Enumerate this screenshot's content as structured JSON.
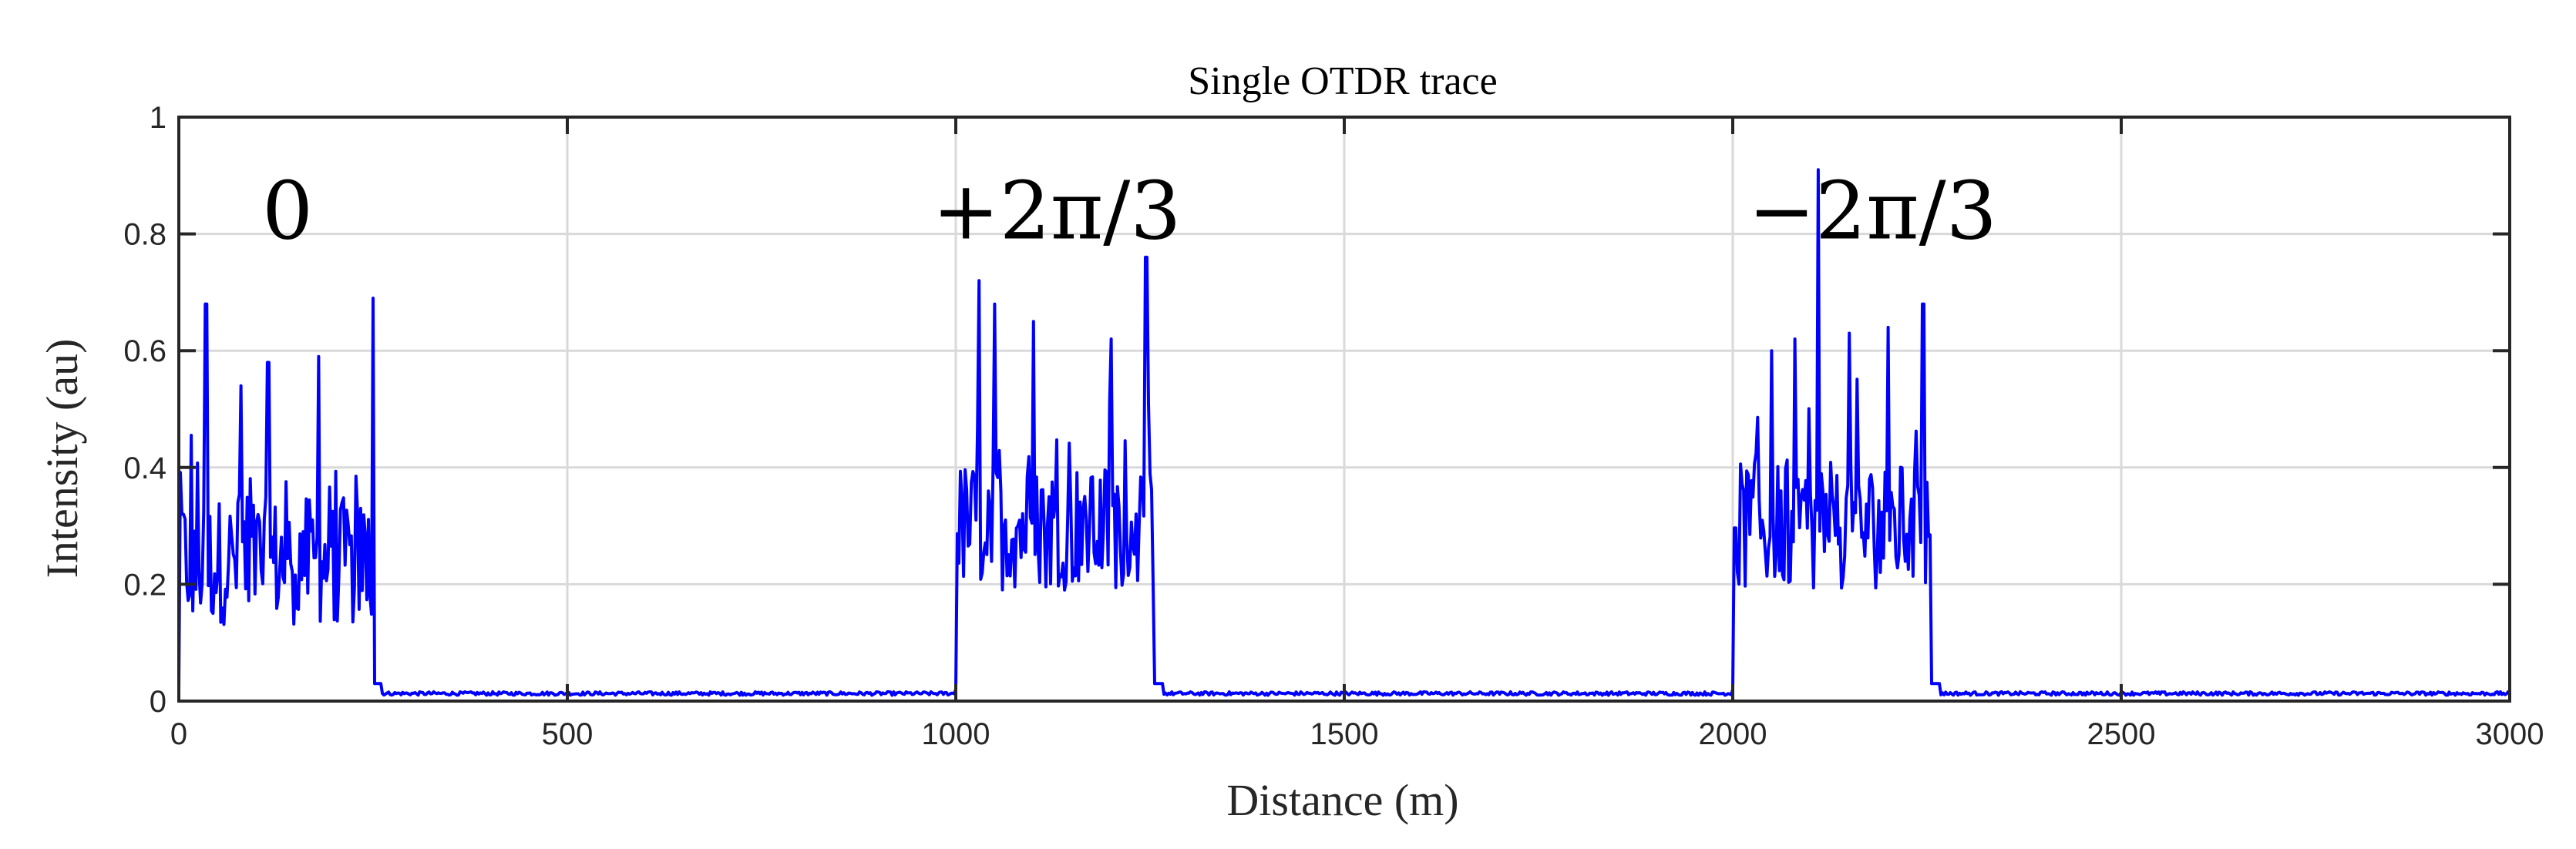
{
  "chart_data": {
    "type": "line",
    "title": "Single OTDR trace",
    "xlabel": "Distance (m)",
    "ylabel": "Intensity (au)",
    "xlim": [
      0,
      3000
    ],
    "ylim": [
      0,
      1
    ],
    "xticks": [
      0,
      500,
      1000,
      1500,
      2000,
      2500,
      3000
    ],
    "yticks": [
      0,
      0.2,
      0.4,
      0.6,
      0.8,
      1
    ],
    "xtick_labels": [
      "0",
      "500",
      "1000",
      "1500",
      "2000",
      "2500",
      "3000"
    ],
    "ytick_labels": [
      "0",
      "0.2",
      "0.4",
      "0.6",
      "0.8",
      "1"
    ],
    "grid": true,
    "line_color": "#0000ff",
    "annotations": [
      {
        "text": "0",
        "x": 140,
        "y": 0.84
      },
      {
        "text": "+2π/3",
        "x": 1130,
        "y": 0.84
      },
      {
        "text": "−2π/3",
        "x": 2180,
        "y": 0.84
      }
    ],
    "series": [
      {
        "name": "Single OTDR trace",
        "pulses": [
          {
            "phase": "0",
            "start": 0,
            "end": 250,
            "peaks": [
              [
                5,
                0.32
              ],
              [
                35,
                0.68
              ],
              [
                80,
                0.54
              ],
              [
                115,
                0.58
              ],
              [
                180,
                0.59
              ],
              [
                250,
                0.69
              ]
            ],
            "baseline": 0.24
          },
          {
            "phase": "+2π/3",
            "start": 1000,
            "end": 1255,
            "peaks": [
              [
                1030,
                0.72
              ],
              [
                1050,
                0.68
              ],
              [
                1100,
                0.65
              ],
              [
                1200,
                0.62
              ],
              [
                1245,
                0.76
              ]
            ],
            "baseline": 0.3
          },
          {
            "phase": "−2π/3",
            "start": 2000,
            "end": 2255,
            "peaks": [
              [
                2050,
                0.6
              ],
              [
                2080,
                0.62
              ],
              [
                2110,
                0.91
              ],
              [
                2150,
                0.63
              ],
              [
                2200,
                0.64
              ],
              [
                2245,
                0.68
              ]
            ],
            "baseline": 0.3
          }
        ],
        "floor": 0.01
      }
    ]
  }
}
